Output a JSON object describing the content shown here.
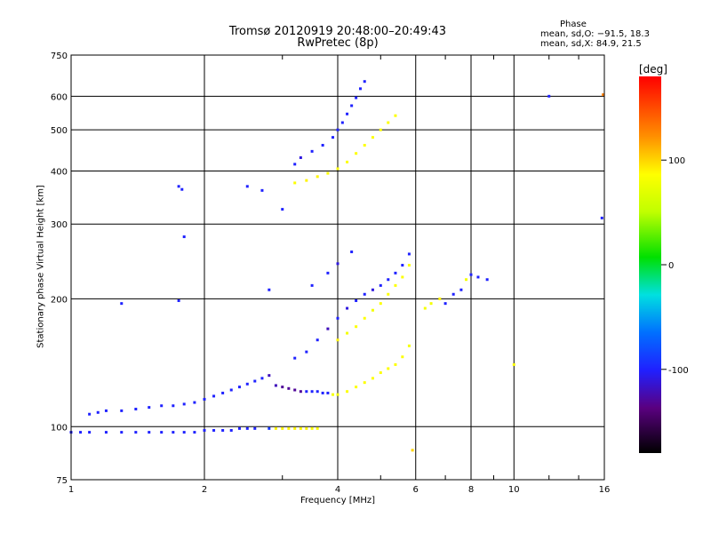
{
  "chart_data": {
    "type": "scatter",
    "title": "Tromsø 20120919 20:48:00–20:49:43",
    "subtitle": "RwPretec (8p)",
    "xlabel": "Frequency [MHz]",
    "ylabel": "Stationary phase Virtual Height [km]",
    "xscale": "log",
    "yscale": "log",
    "xlim": [
      1,
      16
    ],
    "ylim": [
      75,
      750
    ],
    "xticks": [
      1,
      2,
      4,
      6,
      8,
      10,
      16
    ],
    "yticks": [
      75,
      100,
      200,
      300,
      400,
      500,
      600,
      750
    ],
    "grid": true,
    "phase_stats": {
      "title": "Phase",
      "o_mode": "mean, sd,O: −91.5, 18.3",
      "x_mode": "mean, sd,X:  84.9, 21.5"
    },
    "colorbar": {
      "label": "[deg]",
      "range": [
        -180,
        180
      ],
      "ticks": [
        100,
        0,
        -100
      ]
    },
    "series": [
      {
        "points": [
          [
            1.0,
            97,
            -100
          ],
          [
            1.05,
            97,
            -100
          ],
          [
            1.1,
            97,
            -100
          ],
          [
            1.2,
            97,
            -100
          ],
          [
            1.3,
            97,
            -100
          ],
          [
            1.4,
            97,
            -100
          ],
          [
            1.5,
            97,
            -100
          ],
          [
            1.6,
            97,
            -100
          ],
          [
            1.7,
            97,
            -100
          ],
          [
            1.8,
            97,
            -100
          ],
          [
            1.9,
            97,
            -100
          ],
          [
            2.0,
            98,
            -100
          ],
          [
            2.1,
            98,
            -100
          ],
          [
            2.2,
            98,
            -100
          ],
          [
            2.3,
            98,
            -100
          ],
          [
            2.4,
            99,
            -100
          ],
          [
            2.5,
            99,
            -100
          ],
          [
            2.6,
            99,
            -100
          ],
          [
            2.8,
            99,
            -90
          ],
          [
            2.9,
            99,
            90
          ],
          [
            3.0,
            99,
            90
          ],
          [
            3.1,
            99,
            90
          ],
          [
            3.2,
            99,
            90
          ],
          [
            3.3,
            99,
            90
          ],
          [
            3.4,
            99,
            90
          ],
          [
            3.5,
            99,
            85
          ],
          [
            3.6,
            99,
            85
          ],
          [
            1.1,
            107,
            -100
          ],
          [
            1.15,
            108,
            -100
          ],
          [
            1.2,
            109,
            -100
          ],
          [
            1.3,
            109,
            -100
          ],
          [
            1.4,
            110,
            -100
          ],
          [
            1.5,
            111,
            -100
          ],
          [
            1.6,
            112,
            -100
          ],
          [
            1.7,
            112,
            -100
          ],
          [
            1.8,
            113,
            -100
          ],
          [
            1.9,
            114,
            -100
          ],
          [
            2.0,
            116,
            -100
          ],
          [
            2.1,
            118,
            -100
          ],
          [
            2.2,
            120,
            -100
          ],
          [
            2.3,
            122,
            -100
          ],
          [
            2.4,
            124,
            -100
          ],
          [
            2.5,
            126,
            -100
          ],
          [
            2.6,
            128,
            -100
          ],
          [
            2.7,
            130,
            -100
          ],
          [
            2.8,
            132,
            -120
          ],
          [
            2.9,
            125,
            -120
          ],
          [
            3.0,
            124,
            -130
          ],
          [
            3.1,
            123,
            -130
          ],
          [
            3.2,
            122,
            -130
          ],
          [
            3.3,
            121,
            -130
          ],
          [
            3.4,
            121,
            -100
          ],
          [
            3.5,
            121,
            -100
          ],
          [
            3.6,
            121,
            -100
          ],
          [
            3.7,
            120,
            -100
          ],
          [
            3.8,
            120,
            -100
          ],
          [
            3.9,
            119,
            80
          ],
          [
            4.0,
            119,
            80
          ],
          [
            4.2,
            121,
            85
          ],
          [
            4.4,
            124,
            85
          ],
          [
            4.6,
            127,
            85
          ],
          [
            4.8,
            130,
            85
          ],
          [
            5.0,
            134,
            85
          ],
          [
            5.2,
            137,
            85
          ],
          [
            5.4,
            140,
            85
          ],
          [
            5.6,
            146,
            85
          ],
          [
            5.8,
            155,
            80
          ],
          [
            3.2,
            145,
            -100
          ],
          [
            3.4,
            150,
            -100
          ],
          [
            3.6,
            160,
            -100
          ],
          [
            3.8,
            170,
            -120
          ],
          [
            4.0,
            180,
            -100
          ],
          [
            4.2,
            190,
            -110
          ],
          [
            4.4,
            198,
            -100
          ],
          [
            4.6,
            205,
            -100
          ],
          [
            4.8,
            210,
            -110
          ],
          [
            5.0,
            215,
            -100
          ],
          [
            5.2,
            222,
            -100
          ],
          [
            5.4,
            230,
            -100
          ],
          [
            5.6,
            240,
            -100
          ],
          [
            5.8,
            255,
            -100
          ],
          [
            4.0,
            160,
            90
          ],
          [
            4.2,
            166,
            80
          ],
          [
            4.4,
            172,
            85
          ],
          [
            4.6,
            180,
            85
          ],
          [
            4.8,
            188,
            80
          ],
          [
            5.0,
            195,
            85
          ],
          [
            5.2,
            205,
            85
          ],
          [
            5.4,
            215,
            85
          ],
          [
            5.6,
            225,
            85
          ],
          [
            5.8,
            240,
            85
          ],
          [
            3.5,
            215,
            -100
          ],
          [
            3.8,
            230,
            -100
          ],
          [
            4.0,
            242,
            -110
          ],
          [
            4.3,
            258,
            -100
          ],
          [
            6.3,
            190,
            80
          ],
          [
            6.5,
            195,
            80
          ],
          [
            6.8,
            200,
            90
          ],
          [
            7.0,
            195,
            -100
          ],
          [
            7.3,
            205,
            -100
          ],
          [
            7.6,
            210,
            -100
          ],
          [
            7.8,
            222,
            80
          ],
          [
            8.0,
            228,
            -100
          ],
          [
            8.3,
            225,
            -100
          ],
          [
            8.7,
            222,
            -100
          ],
          [
            3.2,
            375,
            85
          ],
          [
            3.4,
            380,
            90
          ],
          [
            3.6,
            388,
            90
          ],
          [
            3.8,
            395,
            85
          ],
          [
            4.0,
            405,
            85
          ],
          [
            4.2,
            420,
            85
          ],
          [
            4.4,
            440,
            85
          ],
          [
            4.6,
            460,
            85
          ],
          [
            4.8,
            480,
            85
          ],
          [
            5.0,
            500,
            85
          ],
          [
            5.2,
            520,
            85
          ],
          [
            5.4,
            540,
            85
          ],
          [
            3.2,
            415,
            -100
          ],
          [
            3.3,
            430,
            -110
          ],
          [
            3.5,
            445,
            -100
          ],
          [
            3.7,
            460,
            -100
          ],
          [
            3.9,
            480,
            -100
          ],
          [
            4.0,
            500,
            -100
          ],
          [
            4.1,
            520,
            -100
          ],
          [
            4.2,
            545,
            -100
          ],
          [
            4.3,
            570,
            -100
          ],
          [
            4.4,
            595,
            -100
          ],
          [
            4.5,
            625,
            -100
          ],
          [
            4.6,
            650,
            -100
          ],
          [
            1.75,
            368,
            -100
          ],
          [
            1.78,
            362,
            -100
          ],
          [
            1.8,
            280,
            -100
          ],
          [
            1.3,
            195,
            -100
          ],
          [
            1.75,
            198,
            -100
          ],
          [
            2.5,
            368,
            -100
          ],
          [
            2.7,
            360,
            -100
          ],
          [
            3.0,
            325,
            -100
          ],
          [
            2.8,
            210,
            -100
          ],
          [
            10.0,
            140,
            85
          ],
          [
            12.0,
            600,
            -100
          ],
          [
            15.8,
            310,
            -100
          ],
          [
            15.9,
            605,
            130
          ],
          [
            5.9,
            88,
            100
          ]
        ]
      }
    ]
  }
}
